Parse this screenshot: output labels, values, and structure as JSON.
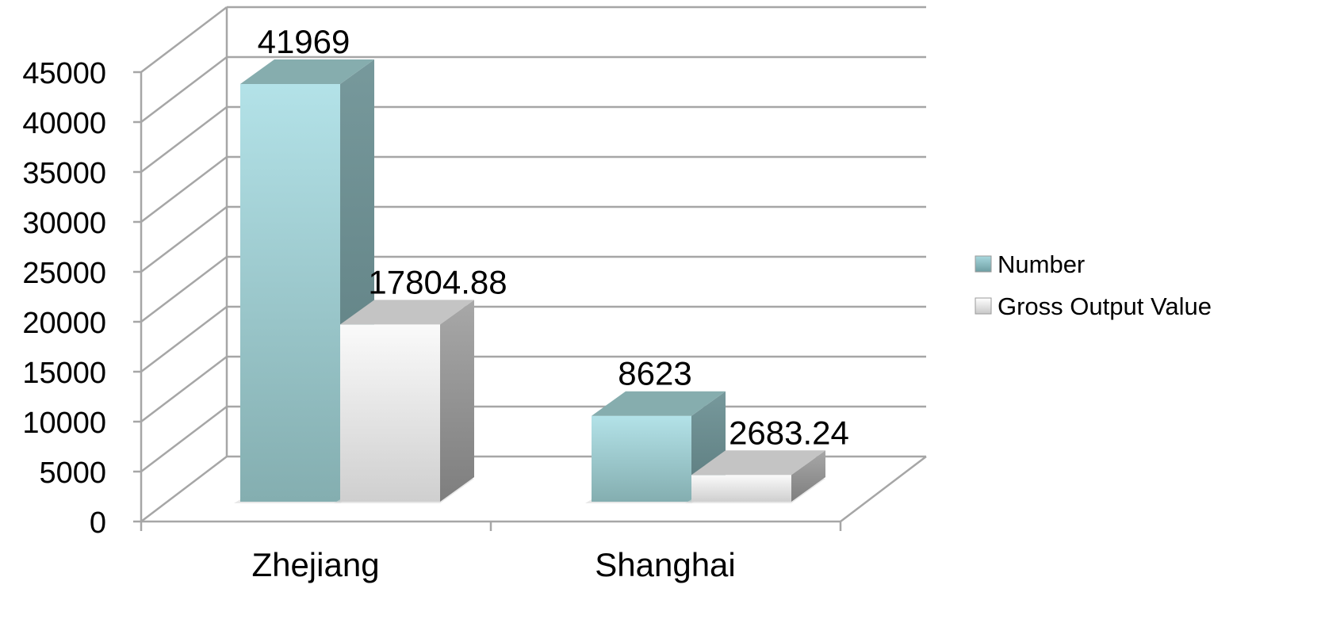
{
  "chart_data": {
    "type": "bar",
    "title": "",
    "xlabel": "",
    "ylabel": "",
    "categories": [
      "Zhejiang",
      "Shanghai"
    ],
    "series": [
      {
        "name": "Number",
        "values": [
          41969,
          8623
        ],
        "color": "#9fd2d8",
        "labels": [
          "41969",
          "8623"
        ]
      },
      {
        "name": "Gross Output Value",
        "values": [
          17804.88,
          2683.24
        ],
        "color": "#f2f2f2",
        "labels": [
          "17804.88",
          "2683.24"
        ]
      }
    ],
    "ylim": [
      0,
      45000
    ],
    "yticks": [
      0,
      5000,
      10000,
      15000,
      20000,
      25000,
      30000,
      35000,
      40000,
      45000
    ],
    "grid": true,
    "legend": "right",
    "style": "3d-clustered-column"
  }
}
